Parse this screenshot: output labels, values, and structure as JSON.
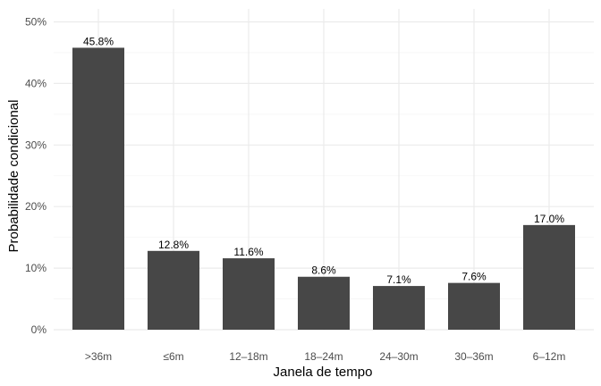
{
  "chart_data": {
    "type": "bar",
    "title": "",
    "xlabel": "Janela de tempo",
    "ylabel": "Probabilidade condicional",
    "categories": [
      ">36m",
      "≤6m",
      "12–18m",
      "18–24m",
      "24–30m",
      "30–36m",
      "6–12m"
    ],
    "values": [
      45.8,
      12.8,
      11.6,
      8.6,
      7.1,
      7.6,
      17.0
    ],
    "data_labels": [
      "45.8%",
      "12.8%",
      "11.6%",
      "8.6%",
      "7.1%",
      "7.6%",
      "17.0%"
    ],
    "ylim": [
      0,
      50
    ],
    "y_ticks": [
      0,
      10,
      20,
      30,
      40,
      50
    ],
    "y_tick_labels": [
      "0%",
      "10%",
      "20%",
      "30%",
      "40%",
      "50%"
    ],
    "grid": true,
    "legend": "none",
    "colors": {
      "bar": "#474747",
      "grid_major": "#ebebeb",
      "grid_minor": "#f5f5f5",
      "background": "#ffffff"
    }
  }
}
